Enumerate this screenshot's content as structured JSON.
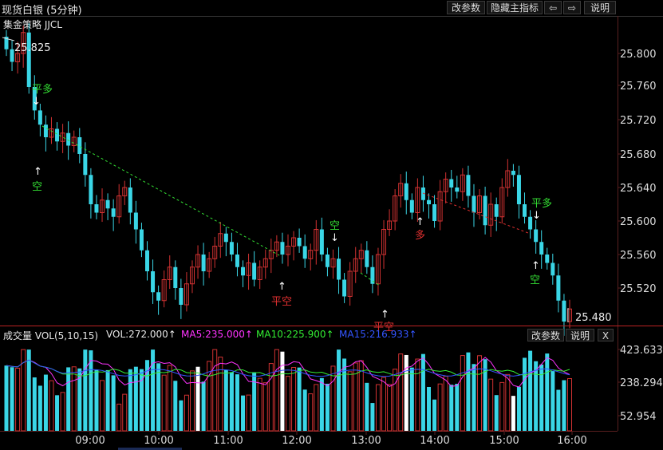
{
  "header": {
    "title": "现货白银 (5分钟)",
    "buttons": [
      "改参数",
      "隐藏主指标",
      "⇦",
      "⇨",
      "说明"
    ]
  },
  "strategy_label": "集金策略 JJCL",
  "price_axis": {
    "ticks": [
      "25.800",
      "25.760",
      "25.720",
      "25.680",
      "25.640",
      "25.600",
      "25.560",
      "25.520"
    ],
    "high_label": "25.825",
    "last_label": "25.480"
  },
  "signals": {
    "ping_duo_1": "平多",
    "kong_1": "空",
    "kong_2": "空",
    "ping_kong_1": "平空",
    "ping_kong_2": "平空",
    "duo_1": "多",
    "ping_duo_2": "平多",
    "kong_3": "空"
  },
  "volume_panel": {
    "title": "成交量 VOL(5,10,15)",
    "vol": "VOL:272.000↑",
    "ma5": "MA5:235.000↑",
    "ma10": "MA10:225.900↑",
    "ma15": "MA15:216.933↑",
    "buttons": [
      "改参数",
      "说明",
      "X"
    ],
    "ticks": [
      "423.633",
      "238.294",
      "52.954"
    ]
  },
  "time_axis": [
    "09:00",
    "10:00",
    "11:00",
    "12:00",
    "13:00",
    "14:00",
    "15:00",
    "16:00"
  ],
  "colors": {
    "up": "#d23232",
    "down": "#3ad6e6",
    "ma5": "#ff33ff",
    "ma10": "#33ee33",
    "ma15": "#3355ff",
    "signal_green": "#33dd33",
    "signal_red": "#e03030"
  }
}
